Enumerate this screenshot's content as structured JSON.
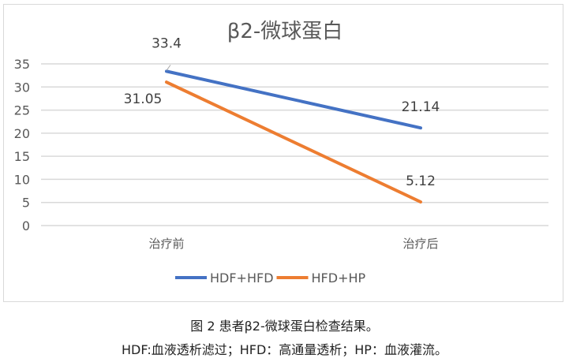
{
  "chart_data": {
    "type": "line",
    "title": "β2-微球蛋白",
    "categories": [
      "治疗前",
      "治疗后"
    ],
    "series": [
      {
        "name": "HDF+HFD",
        "values": [
          33.4,
          21.14
        ],
        "color": "#4472c4"
      },
      {
        "name": "HFD+HP",
        "values": [
          31.05,
          5.12
        ],
        "color": "#ed7d31"
      }
    ],
    "ylim": [
      0,
      35
    ],
    "yticks": [
      0,
      5,
      10,
      15,
      20,
      25,
      30,
      35
    ],
    "grid": true,
    "legend": "bottom",
    "data_labels": true
  },
  "caption": {
    "line1": "图 2  患者β2-微球蛋白检查结果。",
    "line2": "HDF:血液透析滤过；HFD：高通量透析；HP：血液灌流。"
  }
}
